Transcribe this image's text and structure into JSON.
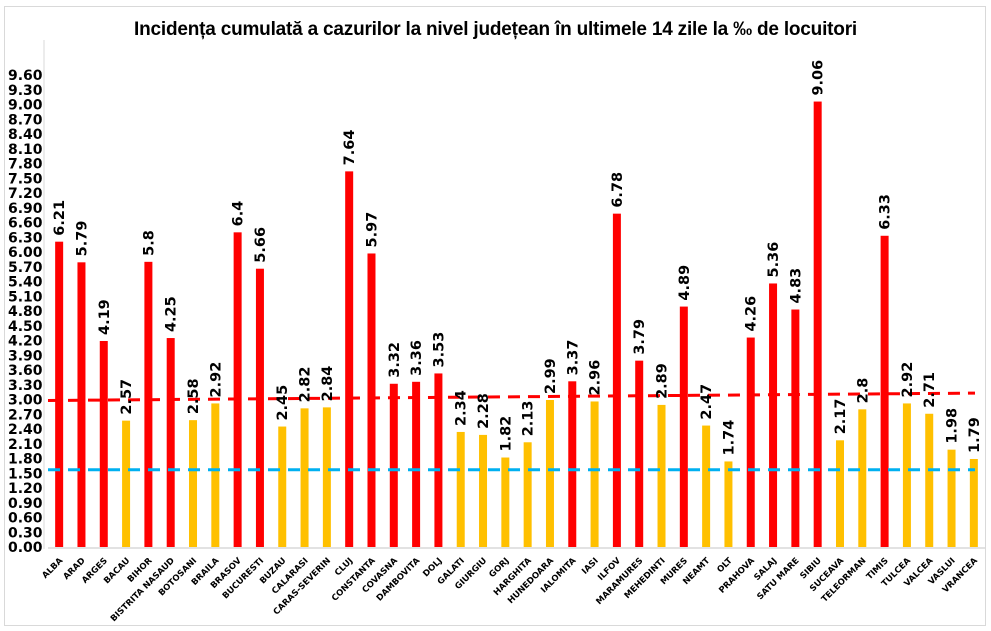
{
  "chart_data": {
    "type": "bar",
    "title": "Incidența cumulată a cazurilor la nivel județean în ultimele 14 zile la ‰ de locuitori",
    "xlabel": "",
    "ylabel": "",
    "ylim": [
      0,
      9.6
    ],
    "y_ticks": [
      "0.00",
      "0.30",
      "0.60",
      "0.90",
      "1.20",
      "1.50",
      "1.80",
      "2.10",
      "2.40",
      "2.70",
      "3.00",
      "3.30",
      "3.60",
      "3.90",
      "4.20",
      "4.50",
      "4.80",
      "5.10",
      "5.40",
      "5.70",
      "6.00",
      "6.30",
      "6.60",
      "6.90",
      "7.20",
      "7.50",
      "7.80",
      "8.10",
      "8.40",
      "8.70",
      "9.00",
      "9.30",
      "9.60"
    ],
    "grid": false,
    "legend": "none",
    "colors": {
      "above_3": "#ff0000",
      "below_3": "#ffc000",
      "line_3": "#ff0000",
      "line_1_5": "#00b0f0"
    },
    "categories": [
      "ALBA",
      "ARAD",
      "ARGES",
      "BACAU",
      "BIHOR",
      "BISTRITA NASAUD",
      "BOTOSANI",
      "BRAILA",
      "BRASOV",
      "BUCURESTI",
      "BUZAU",
      "CALARASI",
      "CARAS-SEVERIN",
      "CLUJ",
      "CONSTANTA",
      "COVASNA",
      "DAMBOVITA",
      "DOLJ",
      "GALATI",
      "GIURGIU",
      "GORJ",
      "HARGHITA",
      "HUNEDOARA",
      "IALOMITA",
      "IASI",
      "ILFOV",
      "MARAMURES",
      "MEHEDINTI",
      "MURES",
      "NEAMT",
      "OLT",
      "PRAHOVA",
      "SALAJ",
      "SATU MARE",
      "SIBIU",
      "SUCEAVA",
      "TELEORMAN",
      "TIMIS",
      "TULCEA",
      "VALCEA",
      "VASLUI",
      "VRANCEA"
    ],
    "values": [
      6.21,
      5.79,
      4.19,
      2.57,
      5.8,
      4.25,
      2.58,
      2.92,
      6.4,
      5.66,
      2.45,
      2.82,
      2.84,
      7.64,
      5.97,
      3.32,
      3.36,
      3.53,
      2.34,
      2.28,
      1.82,
      2.13,
      2.99,
      3.37,
      2.96,
      6.78,
      3.79,
      2.89,
      4.89,
      2.47,
      1.74,
      4.26,
      5.36,
      4.83,
      9.06,
      2.17,
      2.8,
      6.33,
      2.92,
      2.71,
      1.98,
      1.79
    ],
    "data_labels": [
      "6.21",
      "5.79",
      "4.19",
      "2.57",
      "5.8",
      "4.25",
      "2.58",
      "2.92",
      "6.4",
      "5.66",
      "2.45",
      "2.82",
      "2.84",
      "7.64",
      "5.97",
      "3.32",
      "3.36",
      "3.53",
      "2.34",
      "2.28",
      "1.82",
      "2.13",
      "2.99",
      "3.37",
      "2.96",
      "6.78",
      "3.79",
      "2.89",
      "4.89",
      "2.47",
      "1.74",
      "4.26",
      "5.36",
      "4.83",
      "9.06",
      "2.17",
      "2.8",
      "6.33",
      "2.92",
      "2.71",
      "1.98",
      "1.79"
    ],
    "reference_lines": [
      {
        "name": "threshold-3",
        "style": "dashed",
        "color": "#ff0000",
        "start": 2.98,
        "end": 3.13
      },
      {
        "name": "threshold-1.5",
        "style": "dashed",
        "color": "#00b0f0",
        "start": 1.57,
        "end": 1.57
      }
    ]
  }
}
